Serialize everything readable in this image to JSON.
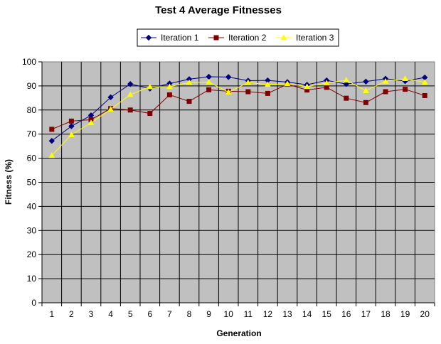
{
  "chart_data": {
    "type": "line",
    "title": "Test 4 Average Fitnesses",
    "xlabel": "Generation",
    "ylabel": "Fitness (%)",
    "x": [
      1,
      2,
      3,
      4,
      5,
      6,
      7,
      8,
      9,
      10,
      11,
      12,
      13,
      14,
      15,
      16,
      17,
      18,
      19,
      20
    ],
    "ylim": [
      0,
      100
    ],
    "yticks": [
      0,
      10,
      20,
      30,
      40,
      50,
      60,
      70,
      80,
      90,
      100
    ],
    "grid": true,
    "legend_position": "top",
    "plot_background": "#c0c0c0",
    "series": [
      {
        "name": "Iteration 1",
        "color": "#000080",
        "marker": "diamond",
        "values": [
          67.2,
          73.3,
          77.8,
          85.3,
          90.8,
          88.9,
          91.0,
          92.8,
          93.8,
          93.7,
          92.2,
          92.3,
          91.6,
          90.5,
          92.3,
          90.8,
          91.8,
          93.0,
          92.0,
          93.5
        ]
      },
      {
        "name": "Iteration 2",
        "color": "#800000",
        "marker": "square",
        "values": [
          72.0,
          75.4,
          76.0,
          80.6,
          80.0,
          78.6,
          86.3,
          83.6,
          88.4,
          87.8,
          87.6,
          86.9,
          90.7,
          88.3,
          89.4,
          84.9,
          83.1,
          87.6,
          88.6,
          86.0
        ]
      },
      {
        "name": "Iteration 3",
        "color": "#ffff00",
        "marker": "triangle",
        "values": [
          61.1,
          69.7,
          74.7,
          80.3,
          86.4,
          89.6,
          89.7,
          91.4,
          91.6,
          87.4,
          91.4,
          90.6,
          90.9,
          89.7,
          91.2,
          92.4,
          88.0,
          91.9,
          93.0,
          91.5
        ]
      }
    ]
  }
}
